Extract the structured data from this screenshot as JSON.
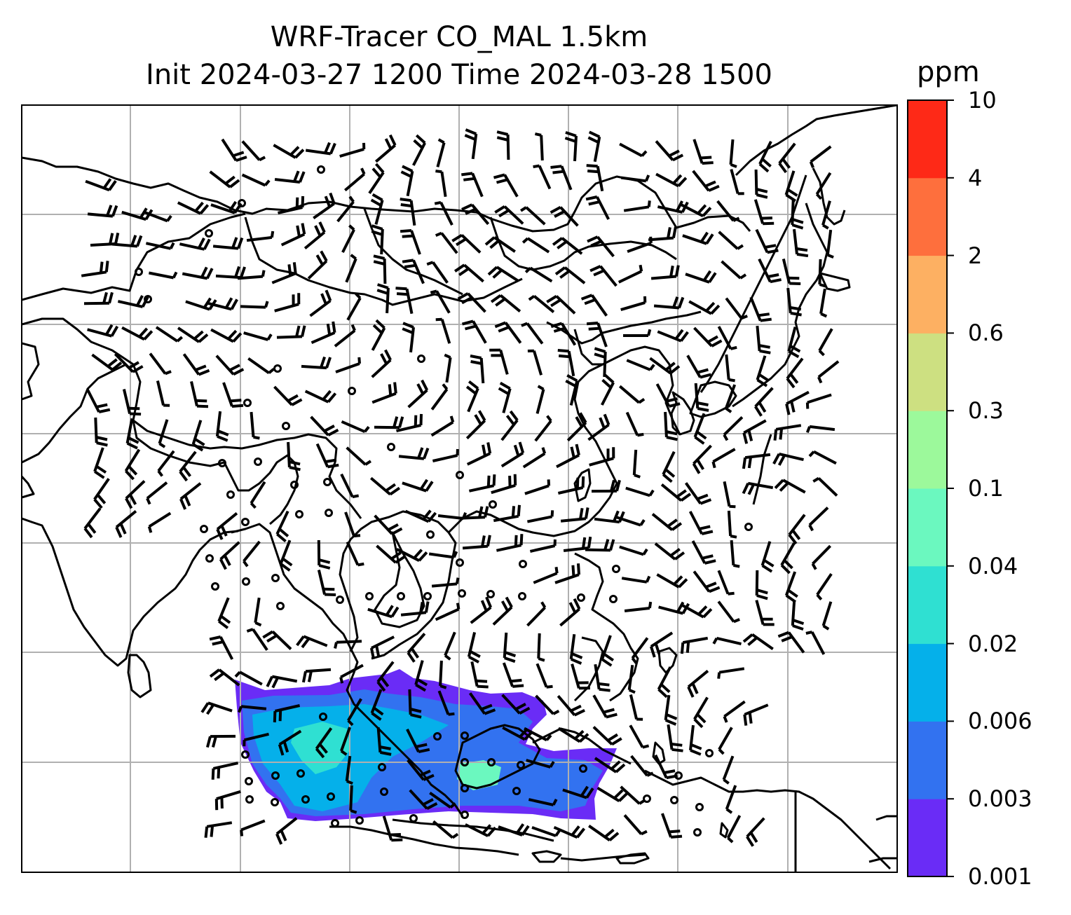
{
  "title": {
    "line1": "WRF-Tracer CO_MAL 1.5km",
    "line2": "Init 2024-03-27 1200 Time 2024-03-28 1500"
  },
  "colorbar": {
    "unit": "ppm",
    "levels": [
      "0.001",
      "0.003",
      "0.006",
      "0.02",
      "0.04",
      "0.1",
      "0.3",
      "0.6",
      "2",
      "4",
      "10"
    ],
    "colors": [
      "#6a2cf6",
      "#3272f0",
      "#05b0ea",
      "#2fe0d2",
      "#6bf8bf",
      "#9cf99b",
      "#cde081",
      "#fdb062",
      "#fe6f3d",
      "#fe2917"
    ]
  },
  "legend_icons": [
    "wind-barb-icon",
    "calm-circle-icon"
  ]
}
